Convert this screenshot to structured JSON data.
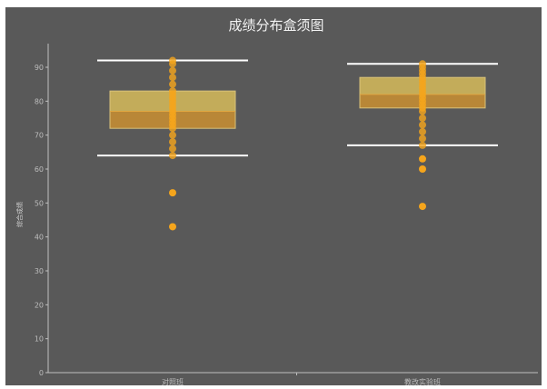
{
  "chart_data": {
    "type": "box",
    "title": "成绩分布盒须图",
    "xlabel": "",
    "ylabel": "综合成绩",
    "ylim": [
      0,
      95
    ],
    "yticks": [
      0,
      10,
      20,
      30,
      40,
      50,
      60,
      70,
      80,
      90
    ],
    "grid": false,
    "categories": [
      "对照班",
      "教改实验班"
    ],
    "boxes": [
      {
        "category": "对照班",
        "whisker_low": 64,
        "q1": 72,
        "median": 77,
        "q3": 83,
        "whisker_high": 92,
        "outliers": [
          53,
          43
        ],
        "points": [
          64,
          66,
          68,
          70,
          72,
          73,
          74,
          75,
          76,
          77,
          78,
          79,
          80,
          81,
          82,
          83,
          85,
          87,
          89,
          91,
          92
        ]
      },
      {
        "category": "教改实验班",
        "whisker_low": 67,
        "q1": 78,
        "median": 82,
        "q3": 87,
        "whisker_high": 91,
        "outliers": [
          63,
          60,
          49
        ],
        "points": [
          67,
          69,
          71,
          73,
          75,
          77,
          78,
          79,
          80,
          81,
          82,
          83,
          84,
          85,
          86,
          87,
          88,
          89,
          90,
          91
        ]
      }
    ],
    "colors": {
      "background": "#595959",
      "axis": "#bfbfbf",
      "box_upper": "#c9b15b",
      "box_lower": "#bf8a36",
      "whisker": "#ffffff",
      "point": "#f5a51c"
    }
  }
}
